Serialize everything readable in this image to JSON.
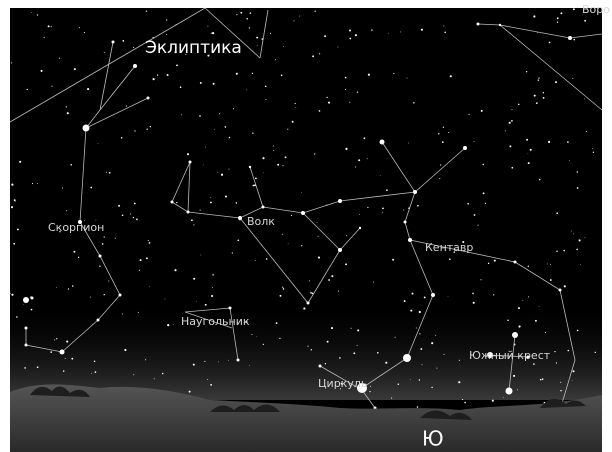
{
  "labels": {
    "ecliptic": "Эклиптика",
    "scorpius": "Скорпион",
    "lupus": "Волк",
    "centaurus": "Кентавр",
    "norma": "Наугольник",
    "circinus": "Циркуль",
    "crux": "Южный крест",
    "corvus": "Воро",
    "south": "Ю"
  }
}
